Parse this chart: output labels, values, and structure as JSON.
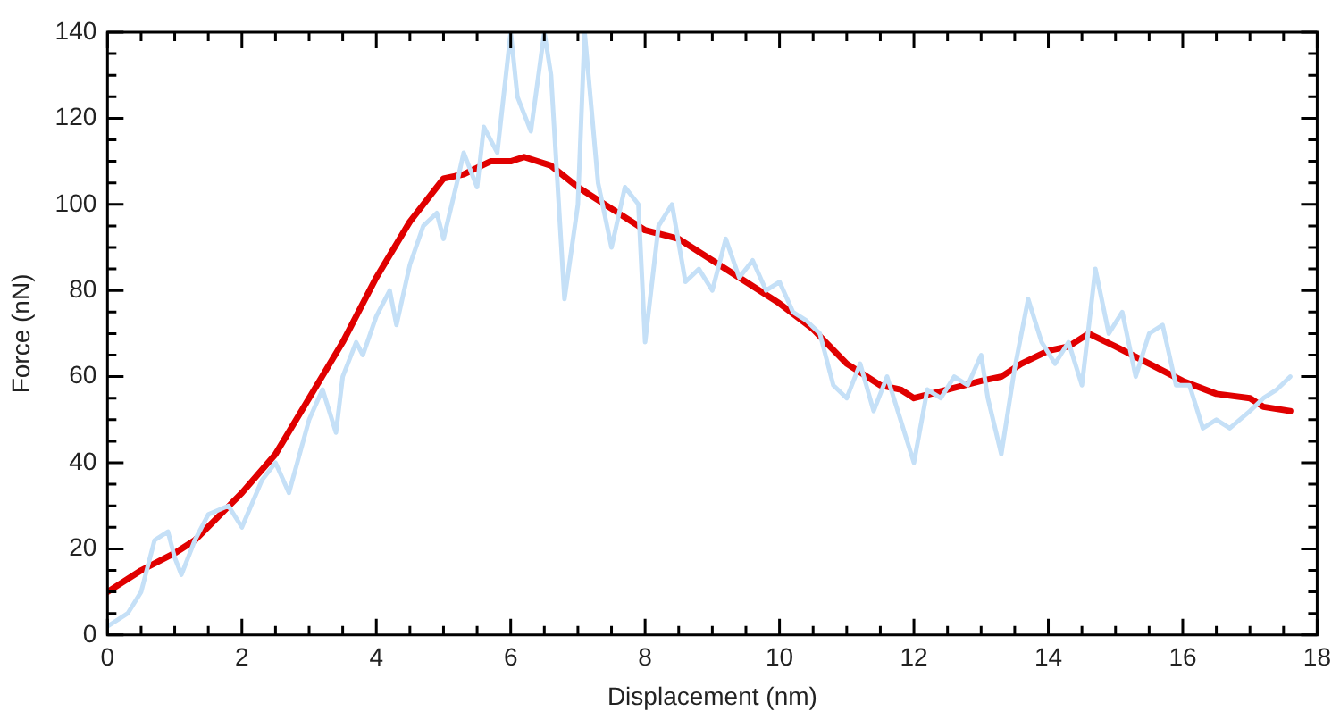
{
  "chart_data": {
    "type": "line",
    "xlabel": "Displacement (nm)",
    "ylabel": "Force (nN)",
    "xlim": [
      0,
      18
    ],
    "ylim": [
      0,
      140
    ],
    "xticks": [
      0,
      2,
      4,
      6,
      8,
      10,
      12,
      14,
      16,
      18
    ],
    "yticks": [
      0,
      20,
      40,
      60,
      80,
      100,
      120,
      140
    ],
    "grid": false,
    "legend": false,
    "marker": "none",
    "line_style": "solid",
    "series": [
      {
        "color": "#c5e0f7",
        "x": [
          0,
          0.3,
          0.5,
          0.7,
          0.9,
          1,
          1.1,
          1.3,
          1.5,
          1.8,
          2,
          2.3,
          2.5,
          2.7,
          3,
          3.2,
          3.4,
          3.5,
          3.7,
          3.8,
          4,
          4.2,
          4.3,
          4.5,
          4.7,
          4.9,
          5,
          5.2,
          5.3,
          5.5,
          5.6,
          5.8,
          6,
          6.1,
          6.3,
          6.5,
          6.6,
          6.8,
          7,
          7.1,
          7.3,
          7.5,
          7.7,
          7.9,
          8,
          8.2,
          8.4,
          8.6,
          8.8,
          9,
          9.2,
          9.4,
          9.6,
          9.8,
          10,
          10.2,
          10.4,
          10.6,
          10.8,
          11,
          11.2,
          11.4,
          11.6,
          11.8,
          12,
          12.2,
          12.4,
          12.6,
          12.8,
          13,
          13.1,
          13.3,
          13.5,
          13.7,
          13.9,
          14.1,
          14.3,
          14.5,
          14.7,
          14.9,
          15.1,
          15.3,
          15.5,
          15.7,
          15.9,
          16.1,
          16.3,
          16.5,
          16.7,
          17,
          17.2,
          17.4,
          17.6
        ],
        "values": [
          2,
          5,
          10,
          22,
          24,
          18,
          14,
          22,
          28,
          30,
          25,
          36,
          40,
          33,
          50,
          57,
          47,
          60,
          68,
          65,
          74,
          80,
          72,
          86,
          95,
          98,
          92,
          105,
          112,
          104,
          118,
          112,
          140,
          125,
          117,
          140,
          130,
          78,
          100,
          140,
          105,
          90,
          104,
          100,
          68,
          95,
          100,
          82,
          85,
          80,
          92,
          83,
          87,
          80,
          82,
          75,
          73,
          70,
          58,
          55,
          63,
          52,
          60,
          50,
          40,
          57,
          55,
          60,
          58,
          65,
          55,
          42,
          62,
          78,
          68,
          63,
          68,
          58,
          85,
          70,
          75,
          60,
          70,
          72,
          58,
          58,
          48,
          50,
          48,
          52,
          55,
          57,
          60
        ]
      },
      {
        "color": "#e00000",
        "x": [
          0,
          0.5,
          1,
          1.3,
          2,
          2.5,
          3,
          3.5,
          4,
          4.5,
          5,
          5.3,
          5.7,
          6,
          6.2,
          6.6,
          7,
          7.5,
          8,
          8.5,
          9,
          9.5,
          10,
          10.5,
          11,
          11.5,
          11.8,
          12,
          12.5,
          13,
          13.3,
          13.6,
          14,
          14.3,
          14.6,
          15,
          15.5,
          16,
          16.5,
          17,
          17.2,
          17.6
        ],
        "values": [
          10,
          15,
          19,
          22,
          33,
          42,
          55,
          68,
          83,
          96,
          106,
          107,
          110,
          110,
          111,
          109,
          104,
          99,
          94,
          92,
          87,
          82,
          77,
          71,
          63,
          58,
          57,
          55,
          57,
          59,
          60,
          63,
          66,
          67,
          70,
          67,
          63,
          59,
          56,
          55,
          53,
          52
        ]
      }
    ]
  }
}
